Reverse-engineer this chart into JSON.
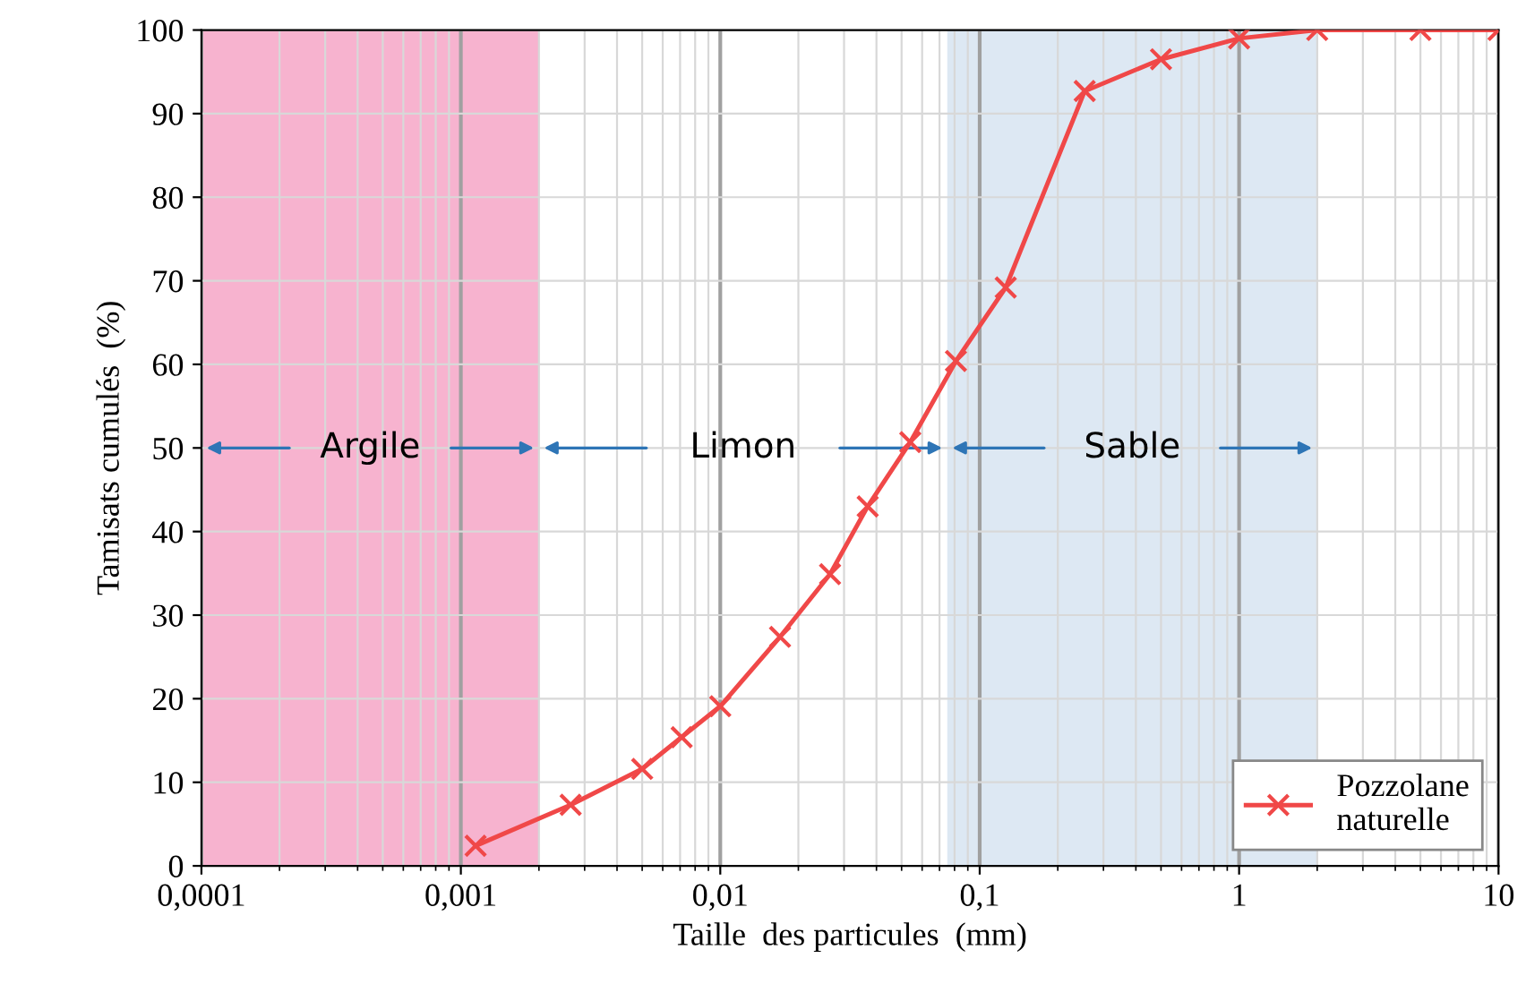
{
  "chart_data": {
    "type": "line",
    "xlabel": "Taille  des particules  (mm)",
    "ylabel": "Tamisats cumulés  (%)",
    "log": "x",
    "xlim": [
      0.0001,
      10
    ],
    "xticks": [
      {
        "value": 0.0001,
        "label": "0,0001"
      },
      {
        "value": 0.001,
        "label": "0,001"
      },
      {
        "value": 0.01,
        "label": "0,01"
      },
      {
        "value": 0.1,
        "label": "0,1"
      },
      1,
      10
    ],
    "ylim": [
      0,
      100
    ],
    "yticks": [
      0,
      10,
      20,
      30,
      40,
      50,
      60,
      70,
      80,
      90,
      100
    ],
    "grid": true,
    "legend": "bottom right",
    "marker": "cross",
    "line_style": "solid",
    "series": [
      {
        "name": "Pozzolane\nnaturelle",
        "color": "#f04848",
        "x": [
          0.00114,
          0.00265,
          0.005,
          0.0071,
          0.01,
          0.017,
          0.0265,
          0.037,
          0.054,
          0.081,
          0.126,
          0.254,
          0.5,
          1,
          2,
          5,
          10
        ],
        "values": [
          2.4,
          7.3,
          11.6,
          15.4,
          19.1,
          27.4,
          34.9,
          43,
          50.7,
          60.4,
          69.2,
          92.7,
          96.5,
          99,
          100,
          100,
          100
        ]
      }
    ],
    "bands": [
      {
        "axis": "x",
        "from": 0.0001,
        "to": 0.002,
        "color": "#f7b3cf"
      },
      {
        "axis": "x",
        "from": 0.075,
        "to": 2,
        "color": "#dde8f3"
      }
    ],
    "annotations": [
      "Argile",
      "Limon",
      "Sable"
    ]
  }
}
